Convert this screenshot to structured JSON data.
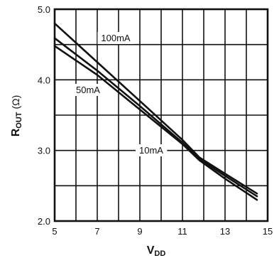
{
  "chart_data": {
    "type": "line",
    "title": "",
    "xlabel": "V",
    "xlabel_sub": "DD",
    "ylabel": "R",
    "ylabel_sub": "OUT",
    "ylabel_unit": "(Ω)",
    "xlim": [
      5,
      15
    ],
    "ylim": [
      2.0,
      5.0
    ],
    "x_ticks": [
      5,
      7,
      9,
      11,
      13,
      15
    ],
    "x_tick_labels": [
      "5",
      "7",
      "9",
      "11",
      "13",
      "15"
    ],
    "y_ticks": [
      2.0,
      3.0,
      4.0,
      5.0
    ],
    "y_tick_labels": [
      "2.0",
      "3.0",
      "4.0",
      "5.0"
    ],
    "x_grid_step": 1,
    "y_grid_step": 0.5,
    "grid": true,
    "series": [
      {
        "name": "100mA",
        "x": [
          5,
          7,
          9,
          11,
          11.8,
          13,
          14.5
        ],
        "y": [
          4.8,
          4.25,
          3.7,
          3.15,
          2.9,
          2.67,
          2.39
        ]
      },
      {
        "name": "50mA",
        "x": [
          5,
          7,
          9,
          11,
          11.8,
          13,
          14.5
        ],
        "y": [
          4.59,
          4.13,
          3.63,
          3.11,
          2.88,
          2.64,
          2.35
        ]
      },
      {
        "name": "10mA",
        "x": [
          5,
          7,
          9,
          11,
          11.8,
          13,
          14.5
        ],
        "y": [
          4.48,
          4.07,
          3.58,
          3.09,
          2.86,
          2.6,
          2.3
        ]
      }
    ]
  }
}
